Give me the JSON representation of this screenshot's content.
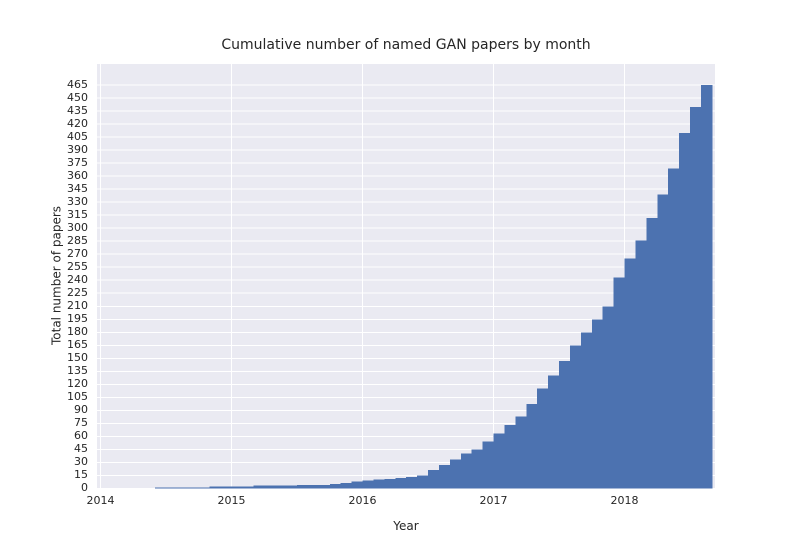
{
  "figure": {
    "bg": "#ffffff",
    "text_color": "#262626"
  },
  "chart_data": {
    "type": "bar",
    "title": "Cumulative number of named GAN papers by month",
    "xlabel": "Year",
    "ylabel": "Total number of papers",
    "style": "seaborn-darkgrid",
    "axes_bg": "#eaeaf2",
    "grid_color": "#ffffff",
    "bar_color": "#4c72b0",
    "grid": true,
    "legend": false,
    "xlim": [
      2013.97,
      2018.69
    ],
    "ylim": [
      0,
      489
    ],
    "x_ticks": [
      "2014",
      "2015",
      "2016",
      "2017",
      "2018"
    ],
    "y_tick_min": 0,
    "y_tick_max": 465,
    "y_tick_step": 15,
    "x": [
      "2014-06",
      "2014-07",
      "2014-08",
      "2014-09",
      "2014-10",
      "2014-11",
      "2014-12",
      "2015-01",
      "2015-02",
      "2015-03",
      "2015-04",
      "2015-05",
      "2015-06",
      "2015-07",
      "2015-08",
      "2015-09",
      "2015-10",
      "2015-11",
      "2015-12",
      "2016-01",
      "2016-02",
      "2016-03",
      "2016-04",
      "2016-05",
      "2016-06",
      "2016-07",
      "2016-08",
      "2016-09",
      "2016-10",
      "2016-11",
      "2016-12",
      "2017-01",
      "2017-02",
      "2017-03",
      "2017-04",
      "2017-05",
      "2017-06",
      "2017-07",
      "2017-08",
      "2017-09",
      "2017-10",
      "2017-11",
      "2017-12",
      "2018-01",
      "2018-02",
      "2018-03",
      "2018-04",
      "2018-05",
      "2018-06",
      "2018-07",
      "2018-08"
    ],
    "values": [
      1,
      1,
      1,
      1,
      1,
      2,
      2,
      2,
      2,
      3,
      3,
      3,
      3,
      4,
      4,
      4,
      5,
      6,
      8,
      9,
      10,
      11,
      12,
      13,
      15,
      21,
      27,
      33,
      40,
      45,
      54,
      63,
      73,
      83,
      97,
      115,
      130,
      147,
      165,
      180,
      195,
      210,
      243,
      265,
      286,
      312,
      339,
      369,
      410,
      440,
      465
    ]
  }
}
